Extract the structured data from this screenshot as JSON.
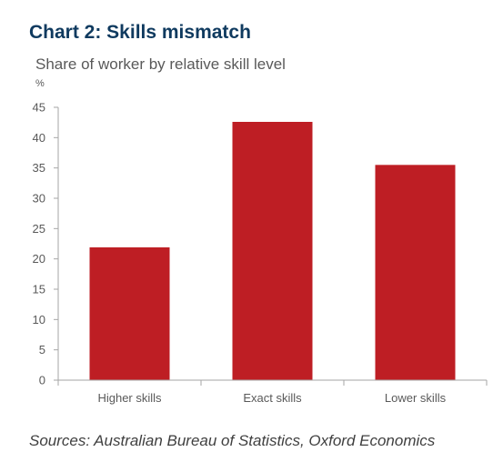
{
  "title": "Chart 2: Skills mismatch",
  "subtitle": "Share of worker by relative skill level",
  "unit": "%",
  "source": "Sources: Australian Bureau of Statistics, Oxford Economics",
  "colors": {
    "bar": "#be1e24",
    "title": "#0f3a5f",
    "axis": "#a6a6a6",
    "text": "#595959"
  },
  "chart_data": {
    "type": "bar",
    "categories": [
      "Higher skills",
      "Exact skills",
      "Lower skills"
    ],
    "values": [
      21.9,
      42.6,
      35.5
    ],
    "ylim": [
      0,
      45
    ],
    "yticks": [
      0,
      5,
      10,
      15,
      20,
      25,
      30,
      35,
      40,
      45
    ],
    "grid": false,
    "legend": "none"
  }
}
